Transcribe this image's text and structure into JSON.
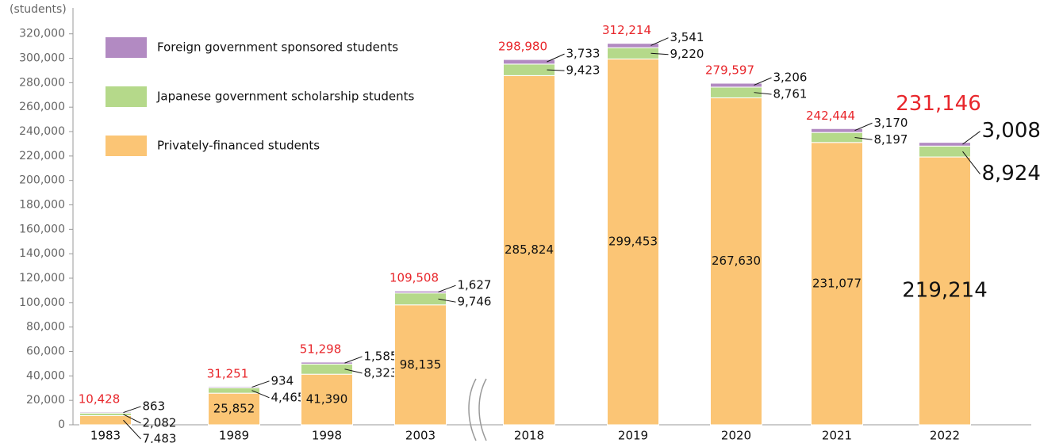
{
  "chart_data": {
    "type": "stacked-bar",
    "y_axis_label": "(students)",
    "categories": [
      "1983",
      "1989",
      "1998",
      "2003",
      "2018",
      "2019",
      "2020",
      "2021",
      "2022"
    ],
    "series": [
      {
        "name": "Privately-financed students",
        "color": "#fbc575",
        "values": [
          7483,
          25852,
          41390,
          98135,
          285824,
          299453,
          267630,
          231077,
          219214
        ],
        "value_labels": [
          "7,483",
          "25,852",
          "41,390",
          "98,135",
          "285,824",
          "299,453",
          "267,630",
          "231,077",
          "219,214"
        ]
      },
      {
        "name": "Japanese government scholarship students",
        "color": "#b5d98a",
        "values": [
          2082,
          4465,
          8323,
          9746,
          9423,
          9220,
          8761,
          8197,
          8924
        ],
        "value_labels": [
          "2,082",
          "4,465",
          "8,323",
          "9,746",
          "9,423",
          "9,220",
          "8,761",
          "8,197",
          "8,924"
        ]
      },
      {
        "name": "Foreign government sponsored students",
        "color": "#b28ac2",
        "values": [
          863,
          934,
          1585,
          1627,
          3733,
          3541,
          3206,
          3170,
          3008
        ],
        "value_labels": [
          "863",
          "934",
          "1,585",
          "1,627",
          "3,733",
          "3,541",
          "3,206",
          "3,170",
          "3,008"
        ]
      }
    ],
    "totals": [
      10428,
      31251,
      51298,
      109508,
      298980,
      312214,
      279597,
      242444,
      231146
    ],
    "total_labels": [
      "10,428",
      "31,251",
      "51,298",
      "109,508",
      "298,980",
      "312,214",
      "279,597",
      "242,444",
      "231,146"
    ],
    "total_color": "#e8262b",
    "ylim": [
      0,
      325000
    ],
    "yticks": [
      {
        "value": 0,
        "label": "0"
      },
      {
        "value": 20000,
        "label": "20,000"
      },
      {
        "value": 40000,
        "label": "40,000"
      },
      {
        "value": 60000,
        "label": "60,000"
      },
      {
        "value": 80000,
        "label": "80,000"
      },
      {
        "value": 100000,
        "label": "100,000"
      },
      {
        "value": 120000,
        "label": "120,000"
      },
      {
        "value": 140000,
        "label": "140,000"
      },
      {
        "value": 160000,
        "label": "160,000"
      },
      {
        "value": 180000,
        "label": "180,000"
      },
      {
        "value": 200000,
        "label": "200,000"
      },
      {
        "value": 220000,
        "label": "220,000"
      },
      {
        "value": 240000,
        "label": "240,000"
      },
      {
        "value": 260000,
        "label": "260,000"
      },
      {
        "value": 280000,
        "label": "280,000"
      },
      {
        "value": 300000,
        "label": "300,000"
      },
      {
        "value": 320000,
        "label": "320,000"
      }
    ],
    "grid": false
  }
}
